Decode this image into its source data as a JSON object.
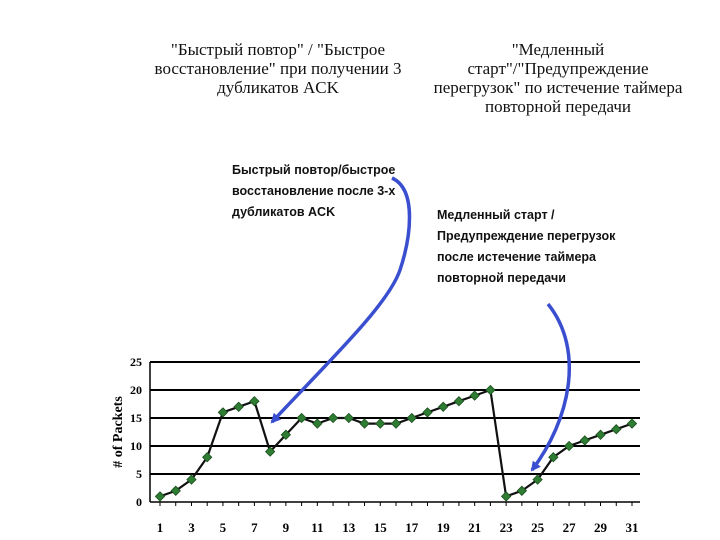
{
  "headings": {
    "left": [
      "\"Быстрый повтор\" / \"Быстрое",
      "восстановление\" при получении 3",
      "дубликатов ACK"
    ],
    "right": [
      "\"Медленный",
      "старт\"/\"Предупреждение",
      "перегрузок\" по истечение таймера",
      "повторной передачи"
    ]
  },
  "annotations": {
    "left": [
      "Быстрый повтор/быстрое",
      "восстановление после 3-х",
      "дубликатов  ACK"
    ],
    "right": [
      "Медленный старт /",
      "Предупреждение перегрузок",
      "после истечение таймера",
      "повторной передачи"
    ]
  },
  "colors": {
    "line": "#111111",
    "marker": "#2e7d32",
    "arrow": "#3a4fd0",
    "grid": "#000000"
  },
  "chart_data": {
    "type": "line",
    "title": "",
    "xlabel": "",
    "ylabel": "# of Packets",
    "ylim": [
      0,
      25
    ],
    "yticks": [
      0,
      5,
      10,
      15,
      20,
      25
    ],
    "xticks": [
      1,
      3,
      5,
      7,
      9,
      11,
      13,
      15,
      17,
      19,
      21,
      23,
      25,
      27,
      29,
      31
    ],
    "grid": true,
    "x": [
      1,
      2,
      3,
      4,
      5,
      6,
      7,
      8,
      9,
      10,
      11,
      12,
      13,
      14,
      15,
      16,
      17,
      18,
      19,
      20,
      21,
      22,
      23,
      24,
      25,
      26,
      27,
      28,
      29,
      30,
      31
    ],
    "series": [
      {
        "values": [
          1,
          2,
          4,
          8,
          16,
          17,
          18,
          9,
          12,
          15,
          14,
          15,
          15,
          14,
          14,
          14,
          15,
          16,
          17,
          18,
          19,
          20,
          1,
          2,
          4,
          8,
          10,
          11,
          12,
          13,
          14
        ]
      }
    ]
  }
}
